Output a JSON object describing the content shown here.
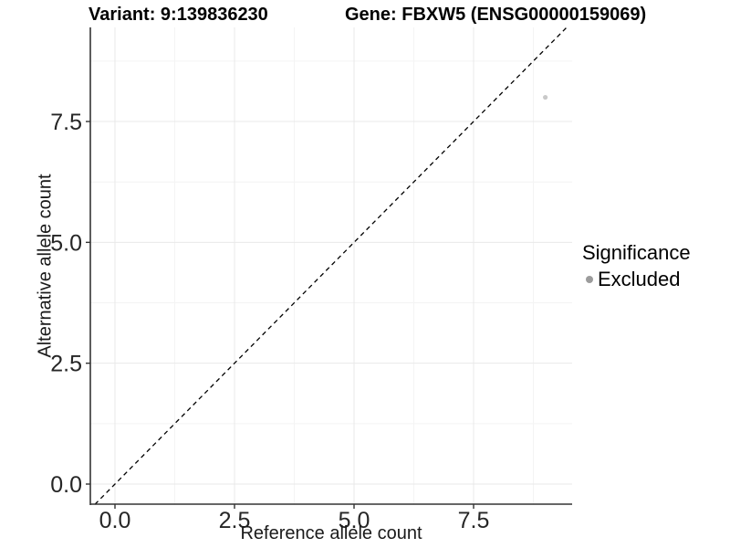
{
  "chart_data": {
    "type": "scatter",
    "title_left": "Variant: 9:139836230",
    "title_right": "Gene: FBXW5 (ENSG00000159069)",
    "xlabel": "Reference allele count",
    "ylabel": "Alternative allele count",
    "x_ticks": [
      0.0,
      2.5,
      5.0,
      7.5
    ],
    "x_tick_labels": [
      "0.0",
      "2.5",
      "5.0",
      "7.5"
    ],
    "y_ticks": [
      0.0,
      2.5,
      5.0,
      7.5
    ],
    "y_tick_labels": [
      "0.0",
      "2.5",
      "5.0",
      "7.5"
    ],
    "x_minor_ticks": [
      1.25,
      3.75,
      6.25,
      8.75
    ],
    "y_minor_ticks": [
      1.25,
      3.75,
      6.25,
      8.75
    ],
    "xlim": [
      -0.52,
      9.56
    ],
    "ylim": [
      -0.42,
      9.45
    ],
    "grid": "major and minor gridlines, very faint gray, no top/right border",
    "points": [
      {
        "x": 9,
        "y": 8,
        "series": "Excluded",
        "color": "#c9c9c9",
        "radius_px": 2.6
      }
    ],
    "reference_line": {
      "type": "identity y=x",
      "style": "dashed",
      "color": "#000000"
    },
    "legend": {
      "title": "Significance",
      "position": "right",
      "entries": [
        {
          "label": "Excluded",
          "marker_color": "#9c9c9c"
        }
      ]
    },
    "colors": {
      "axis_line": "#333333",
      "tick_mark": "#333333",
      "tick_label": "#262626",
      "grid_major": "#e9e9e9",
      "grid_minor": "#f4f4f4",
      "background": "#ffffff"
    }
  }
}
